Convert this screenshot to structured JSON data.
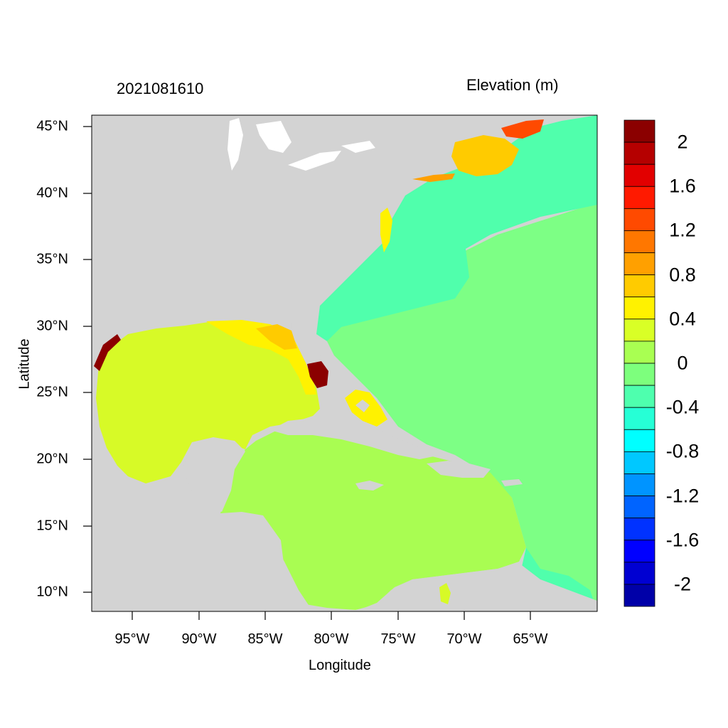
{
  "figure": {
    "timestamp": "2021081610",
    "variable_title": "Elevation (m)",
    "xlabel": "Longitude",
    "ylabel": "Latitude"
  },
  "axes": {
    "xticks": [
      "95°W",
      "90°W",
      "85°W",
      "80°W",
      "75°W",
      "70°W",
      "65°W"
    ],
    "yticks": [
      "45°N",
      "40°N",
      "35°N",
      "30°N",
      "25°N",
      "20°N",
      "15°N",
      "10°N"
    ]
  },
  "colorbar": {
    "labels": [
      "2",
      "1.6",
      "1.2",
      "0.8",
      "0.4",
      "0",
      "-0.4",
      "-0.8",
      "-1.2",
      "-1.6",
      "-2"
    ],
    "colors": [
      "#8b0000",
      "#b50000",
      "#e20000",
      "#ff1a00",
      "#ff4a00",
      "#ff7700",
      "#ffa000",
      "#ffcb00",
      "#fff200",
      "#d9ff26",
      "#a9ff52",
      "#7dff7d",
      "#4effae",
      "#26ffd6",
      "#00ffff",
      "#00c8ff",
      "#0094ff",
      "#0064ff",
      "#0032ff",
      "#0000ff",
      "#0000d2",
      "#0000a8"
    ]
  },
  "map_colors": {
    "land": "#d3d3d3",
    "gulf": "#d7fa27",
    "caribbean": "#a9fd52",
    "atlantic_open": "#7dff85",
    "atlantic_shelf": "#50ffac",
    "surge_high": "#8b0000"
  }
}
